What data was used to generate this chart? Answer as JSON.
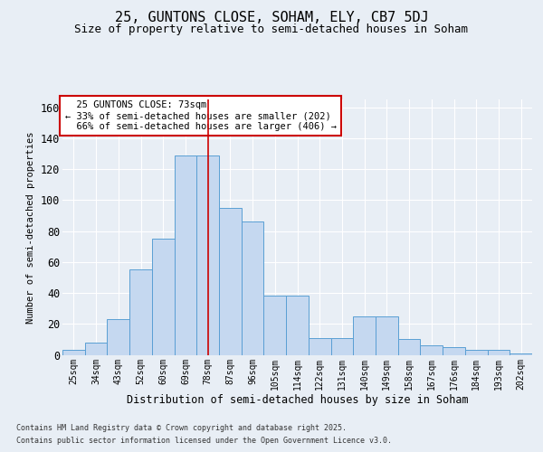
{
  "title1": "25, GUNTONS CLOSE, SOHAM, ELY, CB7 5DJ",
  "title2": "Size of property relative to semi-detached houses in Soham",
  "xlabel": "Distribution of semi-detached houses by size in Soham",
  "ylabel": "Number of semi-detached properties",
  "categories": [
    "25sqm",
    "34sqm",
    "43sqm",
    "52sqm",
    "60sqm",
    "69sqm",
    "78sqm",
    "87sqm",
    "96sqm",
    "105sqm",
    "114sqm",
    "122sqm",
    "131sqm",
    "140sqm",
    "149sqm",
    "158sqm",
    "167sqm",
    "176sqm",
    "184sqm",
    "193sqm",
    "202sqm"
  ],
  "values": [
    3,
    8,
    23,
    55,
    75,
    129,
    129,
    95,
    86,
    38,
    38,
    11,
    11,
    25,
    25,
    10,
    6,
    5,
    3,
    3,
    1
  ],
  "bar_color": "#c5d8f0",
  "bar_edge_color": "#5a9fd4",
  "property_label": "25 GUNTONS CLOSE: 73sqm",
  "pct_smaller": 33,
  "count_smaller": 202,
  "pct_larger": 66,
  "count_larger": 406,
  "vline_pos": 6.0,
  "ylim": [
    0,
    165
  ],
  "yticks": [
    0,
    20,
    40,
    60,
    80,
    100,
    120,
    140,
    160
  ],
  "footer_line1": "Contains HM Land Registry data © Crown copyright and database right 2025.",
  "footer_line2": "Contains public sector information licensed under the Open Government Licence v3.0.",
  "background_color": "#e8eef5",
  "plot_background": "#e8eef5",
  "annotation_box_color": "#ffffff",
  "annotation_box_edge": "#cc0000",
  "vline_color": "#cc0000",
  "grid_color": "#ffffff",
  "title_fontsize": 11,
  "subtitle_fontsize": 9
}
